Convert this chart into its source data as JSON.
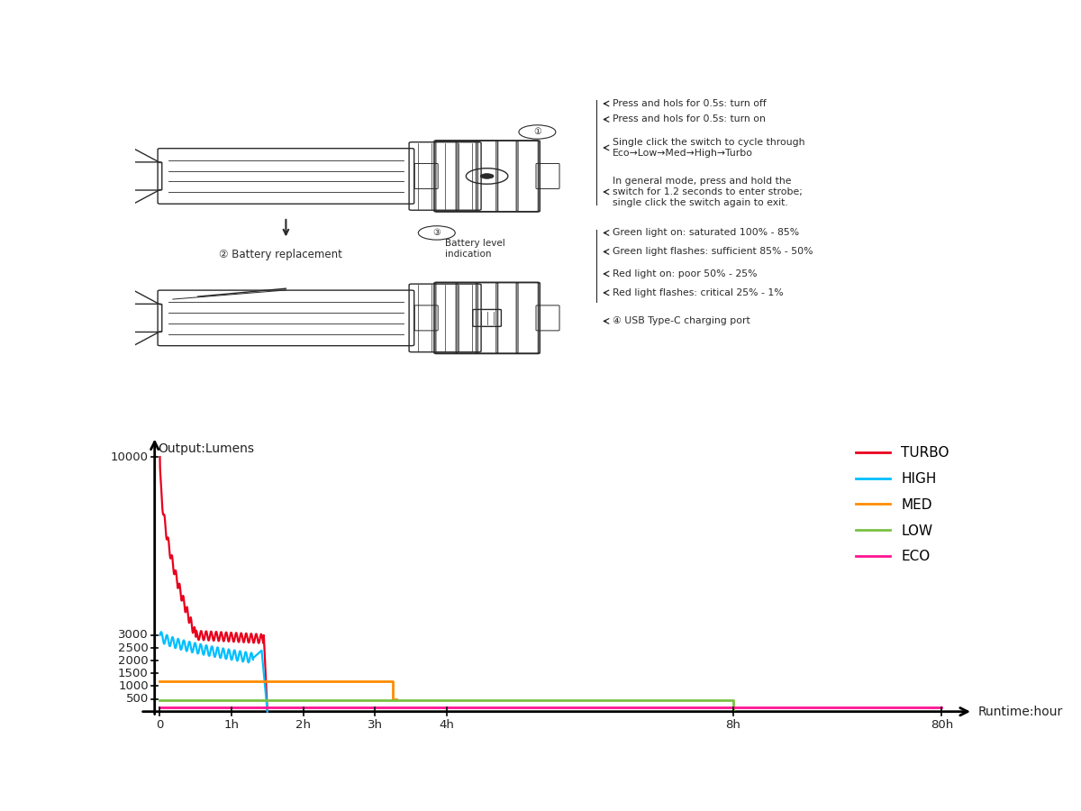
{
  "bg_color": "#ffffff",
  "text_color": "#222222",
  "legend_colors": [
    "#e8001c",
    "#00bfff",
    "#ff8c00",
    "#7ac143",
    "#ff1493"
  ],
  "legend_labels": [
    "TURBO",
    "HIGH",
    "MED",
    "LOW",
    "ECO"
  ],
  "ylabel": "Output:Lumens",
  "xlabel": "Runtime:hour",
  "ytick_pos": [
    500,
    1000,
    1500,
    2000,
    2500,
    3000,
    10000
  ],
  "xtick_positions": [
    0,
    1,
    2,
    3,
    4,
    8,
    80
  ],
  "xtick_labels": [
    "0",
    "1h",
    "2h",
    "3h",
    "4h",
    "8h",
    "80h"
  ],
  "instructions": [
    "Press and hols for 0.5s: turn off",
    "Press and hols for 0.5s: turn on",
    "Single click the switch to cycle through\nEco→Low→Med→High→Turbo",
    "In general mode, press and hold the\nswitch for 1.2 seconds to enter strobe;\nsingle click the switch again to exit."
  ],
  "battery_infos": [
    "Green light on: saturated 100% - 85%",
    "Green light flashes: sufficient 85% - 50%",
    "Red light on: poor 50% - 25%",
    "Red light flashes: critical 25% - 1%"
  ]
}
